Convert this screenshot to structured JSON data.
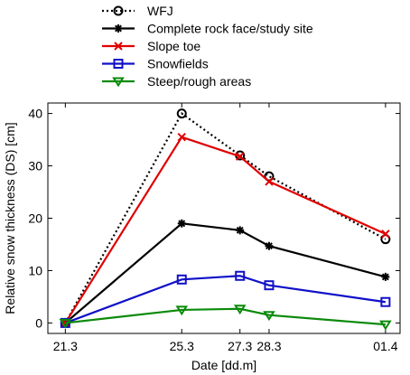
{
  "chart_data": {
    "type": "line",
    "title": "",
    "xlabel": "Date [dd.m]",
    "ylabel": "Relative snow thickness (DS) [cm]",
    "x_ticks": [
      "21.3",
      "25.3",
      "27.3",
      "28.3",
      "01.4"
    ],
    "x_day_positions": [
      21,
      25,
      27,
      28,
      32
    ],
    "xlim": [
      20.4,
      32.5
    ],
    "ylim": [
      -2,
      42
    ],
    "y_ticks": [
      0,
      10,
      20,
      30,
      40
    ],
    "grid": false,
    "legend_position": "top",
    "series": [
      {
        "name": "WFJ",
        "color": "#000000",
        "dash": "dotted",
        "marker": "circle",
        "values": [
          0,
          40,
          32,
          28,
          16
        ]
      },
      {
        "name": "Complete rock face/study site",
        "color": "#000000",
        "dash": "solid",
        "marker": "star",
        "values": [
          0,
          19,
          17.7,
          14.7,
          8.8
        ]
      },
      {
        "name": "Slope toe",
        "color": "#e00000",
        "dash": "solid",
        "marker": "x",
        "values": [
          0,
          35.5,
          31.8,
          27,
          17
        ]
      },
      {
        "name": "Snowfields",
        "color": "#1010c8",
        "dash": "solid",
        "marker": "square",
        "values": [
          0,
          8.3,
          9,
          7.2,
          4
        ]
      },
      {
        "name": "Steep/rough areas",
        "color": "#0a8a0a",
        "dash": "solid",
        "marker": "triangle-down",
        "values": [
          0,
          2.5,
          2.7,
          1.5,
          -0.3
        ]
      }
    ]
  }
}
